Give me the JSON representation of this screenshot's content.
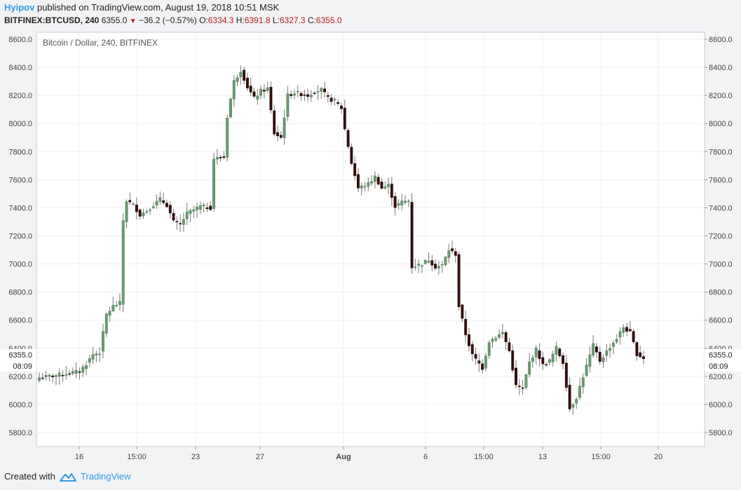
{
  "header": {
    "author": "Hyipov",
    "published_text": "published on TradingView.com, August 19, 2018 10:51 MSK",
    "symbol": "BITFINEX:BTCUSD, 240",
    "last": "6355.0",
    "change": "−36.2 (−0.57%)",
    "o_label": "O:",
    "o_value": "6334.3",
    "h_label": "H:",
    "h_value": "6391.8",
    "l_label": "L:",
    "l_value": "6327.3",
    "c_label": "C:",
    "c_value": "6355.0"
  },
  "footer": {
    "created_with": "Created with",
    "brand": "TradingView"
  },
  "colors": {
    "up_body": "#6a9a72",
    "down_body": "#3a0d0d",
    "wick": "#777777",
    "accent": "#2f9ae0",
    "down_text": "#b71c1c"
  },
  "chart_data": {
    "type": "candlestick",
    "title": "Bitcoin / Dollar, 240, BITFINEX",
    "ylim": [
      5700,
      8650
    ],
    "y_ticks": [
      "5800.0",
      "6000.0",
      "6200.0",
      "6400.0",
      "6600.0",
      "6800.0",
      "7000.0",
      "7200.0",
      "7400.0",
      "7600.0",
      "7800.0",
      "8000.0",
      "8200.0",
      "8400.0",
      "8600.0"
    ],
    "x_tick_labels": [
      "16",
      "15:00",
      "23",
      "27",
      "Aug",
      "6",
      "15:00",
      "13",
      "15:00",
      "20"
    ],
    "price_label": {
      "value": "6355.0",
      "countdown": "08:09"
    },
    "grid": true,
    "anchors": [
      [
        0,
        6190
      ],
      [
        6,
        6210
      ],
      [
        12,
        6235
      ],
      [
        14,
        6290
      ],
      [
        16,
        6355
      ],
      [
        18,
        6370
      ],
      [
        20,
        6640
      ],
      [
        22,
        6700
      ],
      [
        24,
        6720
      ],
      [
        25,
        7310
      ],
      [
        26,
        7450
      ],
      [
        28,
        7420
      ],
      [
        30,
        7350
      ],
      [
        32,
        7380
      ],
      [
        34,
        7420
      ],
      [
        36,
        7460
      ],
      [
        38,
        7420
      ],
      [
        40,
        7300
      ],
      [
        42,
        7280
      ],
      [
        44,
        7360
      ],
      [
        48,
        7410
      ],
      [
        51,
        7400
      ],
      [
        52,
        7750
      ],
      [
        55,
        7760
      ],
      [
        56,
        8050
      ],
      [
        58,
        8300
      ],
      [
        60,
        8380
      ],
      [
        62,
        8260
      ],
      [
        64,
        8180
      ],
      [
        66,
        8230
      ],
      [
        68,
        8250
      ],
      [
        70,
        7930
      ],
      [
        72,
        7900
      ],
      [
        74,
        8200
      ],
      [
        76,
        8220
      ],
      [
        80,
        8200
      ],
      [
        82,
        8230
      ],
      [
        84,
        8240
      ],
      [
        86,
        8180
      ],
      [
        88,
        8160
      ],
      [
        90,
        8110
      ],
      [
        91,
        7960
      ],
      [
        93,
        7720
      ],
      [
        95,
        7540
      ],
      [
        98,
        7570
      ],
      [
        100,
        7620
      ],
      [
        102,
        7540
      ],
      [
        104,
        7560
      ],
      [
        106,
        7410
      ],
      [
        108,
        7440
      ],
      [
        110,
        7450
      ],
      [
        111,
        6980
      ],
      [
        114,
        7000
      ],
      [
        116,
        7030
      ],
      [
        118,
        6980
      ],
      [
        120,
        6990
      ],
      [
        122,
        7100
      ],
      [
        124,
        7070
      ],
      [
        125,
        6700
      ],
      [
        127,
        6500
      ],
      [
        129,
        6350
      ],
      [
        132,
        6260
      ],
      [
        134,
        6450
      ],
      [
        138,
        6510
      ],
      [
        140,
        6380
      ],
      [
        142,
        6130
      ],
      [
        144,
        6110
      ],
      [
        146,
        6300
      ],
      [
        148,
        6390
      ],
      [
        150,
        6280
      ],
      [
        152,
        6310
      ],
      [
        154,
        6400
      ],
      [
        156,
        6300
      ],
      [
        158,
        5970
      ],
      [
        160,
        6050
      ],
      [
        162,
        6200
      ],
      [
        165,
        6420
      ],
      [
        167,
        6310
      ],
      [
        170,
        6410
      ],
      [
        172,
        6470
      ],
      [
        174,
        6550
      ],
      [
        176,
        6510
      ],
      [
        178,
        6360
      ],
      [
        180,
        6330
      ]
    ]
  }
}
